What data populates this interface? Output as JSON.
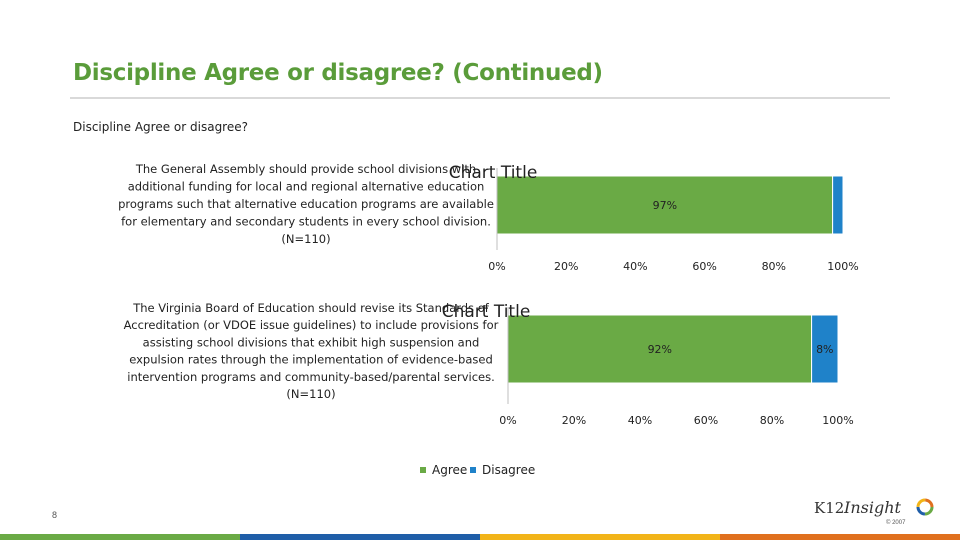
{
  "slide": {
    "title": "Discipline Agree or disagree? (Continued)",
    "subtitle": "Discipline Agree or disagree?",
    "page_number": "8",
    "logo_k12": "K12",
    "logo_insight": "Insight",
    "copyright": "© 2007"
  },
  "colors": {
    "agree": "#6aaa45",
    "disagree": "#1f82c9",
    "title": "#5a9c3a",
    "footer": [
      "#6aaa45",
      "#1f5ea8",
      "#f2b418",
      "#e0701e"
    ]
  },
  "legend": {
    "items": [
      {
        "name": "Agree",
        "color": "#6aaa45"
      },
      {
        "name": "Disagree",
        "color": "#1f82c9"
      }
    ],
    "placement": "bottom"
  },
  "chart_data": [
    {
      "type": "bar",
      "orientation": "horizontal",
      "stacked": true,
      "title": "Chart Title",
      "categories": [
        "The General Assembly should provide school divisions with additional funding for local and regional alternative education programs such that alternative education programs are available for elementary and secondary students in every school division. (N=110)"
      ],
      "category_lines": [
        "The General Assembly should provide school divisions with",
        "additional funding for local and regional alternative education",
        "programs such that alternative education programs are available",
        "for elementary and secondary students in every school division.",
        "(N=110)"
      ],
      "series": [
        {
          "name": "Agree",
          "values": [
            97
          ],
          "labels": [
            "97%"
          ]
        },
        {
          "name": "Disagree",
          "values": [
            3
          ],
          "labels": [
            ""
          ]
        }
      ],
      "xlim": [
        0,
        100
      ],
      "x_ticks": [
        "0%",
        "20%",
        "40%",
        "60%",
        "80%",
        "100%"
      ],
      "grid": false
    },
    {
      "type": "bar",
      "orientation": "horizontal",
      "stacked": true,
      "title": "Chart Title",
      "categories": [
        "The Virginia Board of Education should revise its Standards of Accreditation (or VDOE issue guidelines) to include provisions for assisting school divisions that exhibit high suspension and expulsion rates through the implementation of evidence-based intervention programs and community-based/parental services. (N=110)"
      ],
      "category_lines": [
        "The Virginia Board of Education should revise its Standards of",
        "Accreditation (or VDOE issue guidelines) to include provisions for",
        "assisting school divisions that exhibit high suspension and",
        "expulsion rates through the implementation of evidence-based",
        "intervention programs and community-based/parental services.",
        "(N=110)"
      ],
      "series": [
        {
          "name": "Agree",
          "values": [
            92
          ],
          "labels": [
            "92%"
          ]
        },
        {
          "name": "Disagree",
          "values": [
            8
          ],
          "labels": [
            "8%"
          ]
        }
      ],
      "xlim": [
        0,
        100
      ],
      "x_ticks": [
        "0%",
        "20%",
        "40%",
        "60%",
        "80%",
        "100%"
      ],
      "grid": false
    }
  ]
}
